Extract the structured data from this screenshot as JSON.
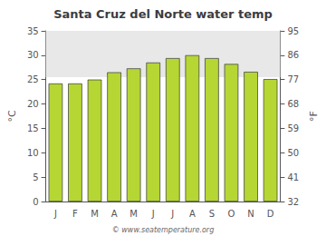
{
  "chart_data": {
    "type": "bar",
    "title": "Santa Cruz del Norte water temp",
    "categories": [
      "J",
      "F",
      "M",
      "A",
      "M",
      "J",
      "J",
      "A",
      "S",
      "O",
      "N",
      "D"
    ],
    "values": [
      24.2,
      24.2,
      25.0,
      26.5,
      27.3,
      28.5,
      29.4,
      30.0,
      29.4,
      28.2,
      26.6,
      25.1
    ],
    "ylabel": "°C",
    "y2label": "°F",
    "ylim": [
      0,
      35
    ],
    "yticks": [
      0,
      5,
      10,
      15,
      20,
      25,
      30,
      35
    ],
    "y2lim": [
      32,
      95
    ],
    "y2ticks": [
      32,
      41,
      50,
      59,
      68,
      77,
      86,
      95
    ],
    "band": {
      "range": [
        25.5,
        35
      ],
      "color": "#e8e8e8"
    },
    "annotation": "© www.seatemperature.org",
    "grid": false
  }
}
